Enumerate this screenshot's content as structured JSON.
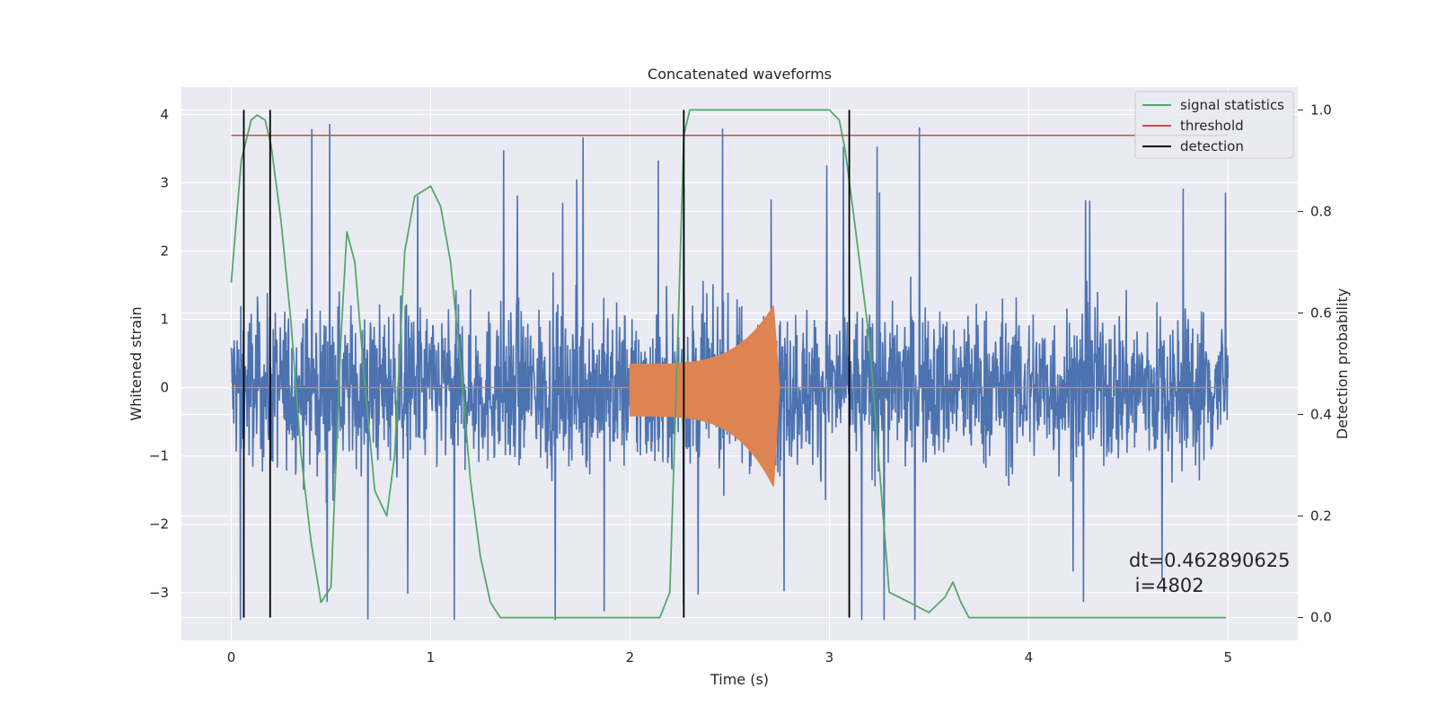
{
  "chart_data": {
    "type": "line",
    "title": "Concatenated waveforms",
    "xlabel": "Time (s)",
    "ylabel": "Whitened strain",
    "y2label": "Detection probability",
    "xlim": [
      -0.25,
      5.35
    ],
    "ylim": [
      -3.7,
      4.4
    ],
    "y2lim": [
      -0.045,
      1.045
    ],
    "x_ticks": [
      0,
      1,
      2,
      3,
      4,
      5
    ],
    "x_tick_labels": [
      "0",
      "1",
      "2",
      "3",
      "4",
      "5"
    ],
    "y_ticks": [
      -3,
      -2,
      -1,
      0,
      1,
      2,
      3,
      4
    ],
    "y_tick_labels": [
      "−3",
      "−2",
      "−1",
      "0",
      "1",
      "2",
      "3",
      "4"
    ],
    "y2_ticks": [
      0.0,
      0.2,
      0.4,
      0.6,
      0.8,
      1.0
    ],
    "y2_tick_labels": [
      "0.0",
      "0.2",
      "0.4",
      "0.6",
      "0.8",
      "1.0"
    ],
    "grid": true,
    "legend_position": "top-right",
    "noise": {
      "color": "#4c72b0",
      "x_range": [
        0,
        5
      ],
      "typical_amplitude": 1.1,
      "min": -3.4,
      "max": 4.05
    },
    "chirp": {
      "color": "#dd8452",
      "start": 2.0,
      "peak": 2.72,
      "end": 2.75,
      "start_amplitude": 0.35,
      "peak_positive": 1.2,
      "peak_negative": -1.45
    },
    "series": [
      {
        "name": "signal statistics",
        "axis": "right",
        "color": "#55a868",
        "x": [
          0.0,
          0.05,
          0.1,
          0.13,
          0.17,
          0.2,
          0.25,
          0.3,
          0.35,
          0.4,
          0.45,
          0.5,
          0.55,
          0.58,
          0.62,
          0.67,
          0.72,
          0.78,
          0.82,
          0.87,
          0.92,
          1.0,
          1.05,
          1.1,
          1.15,
          1.2,
          1.25,
          1.3,
          1.35,
          1.5,
          2.0,
          2.15,
          2.2,
          2.24,
          2.27,
          2.3,
          2.5,
          2.8,
          3.0,
          3.05,
          3.08,
          3.12,
          3.2,
          3.25,
          3.3,
          3.4,
          3.5,
          3.58,
          3.62,
          3.66,
          3.7,
          3.75,
          4.0,
          4.5,
          4.99
        ],
        "values": [
          0.66,
          0.9,
          0.98,
          0.99,
          0.98,
          0.93,
          0.78,
          0.58,
          0.32,
          0.15,
          0.03,
          0.06,
          0.55,
          0.76,
          0.7,
          0.46,
          0.25,
          0.2,
          0.32,
          0.72,
          0.83,
          0.85,
          0.81,
          0.7,
          0.5,
          0.27,
          0.12,
          0.03,
          0.0,
          0.0,
          0.0,
          0.0,
          0.05,
          0.55,
          0.95,
          1.0,
          1.0,
          1.0,
          1.0,
          0.98,
          0.92,
          0.8,
          0.55,
          0.3,
          0.05,
          0.03,
          0.01,
          0.04,
          0.07,
          0.03,
          0.0,
          0.0,
          0.0,
          0.0,
          0.0
        ]
      },
      {
        "name": "threshold",
        "axis": "right",
        "color": "#c44e52",
        "x": [
          0.0,
          5.0
        ],
        "values": [
          0.95,
          0.95
        ]
      },
      {
        "name": "detection",
        "axis": "right",
        "color": "#000000",
        "type": "vlines",
        "x": [
          0.063,
          0.195,
          2.27,
          3.1
        ],
        "y_range": [
          0.0,
          1.0
        ]
      }
    ],
    "annotation": {
      "line1": "dt=0.462890625",
      "line2": " i=4802"
    }
  }
}
